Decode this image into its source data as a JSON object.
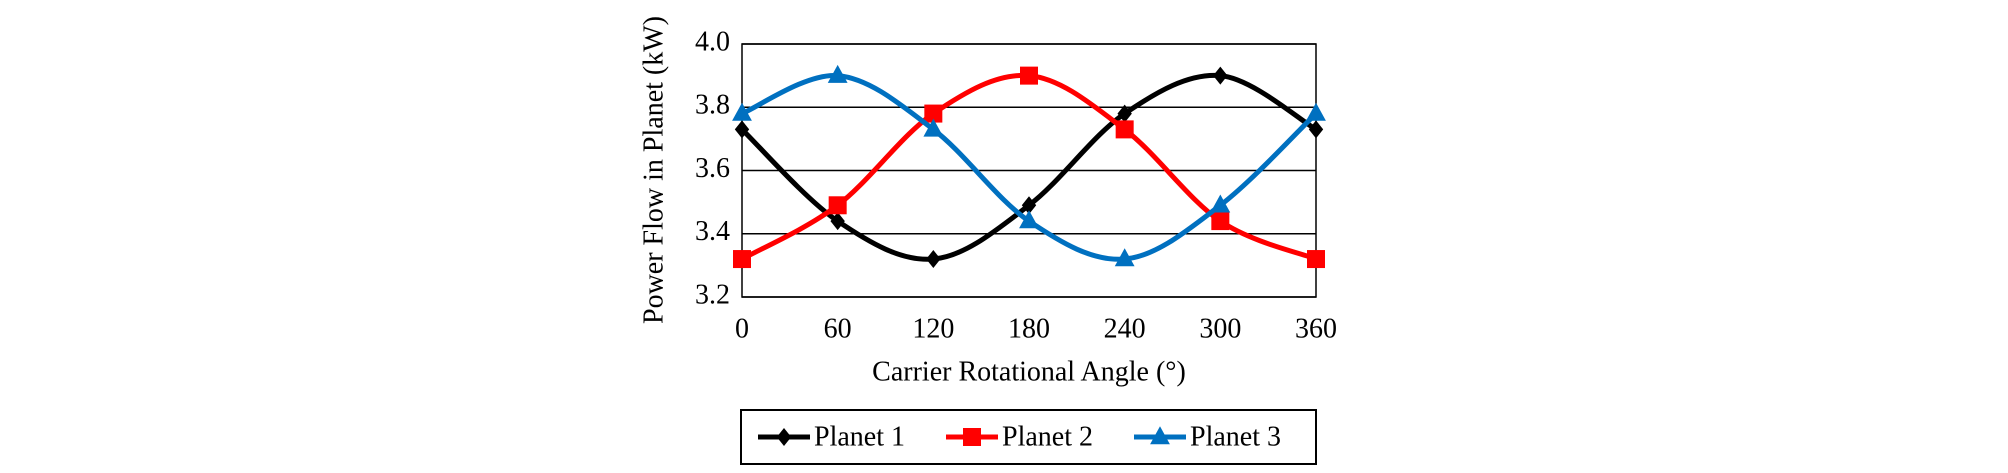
{
  "chart_data": {
    "type": "line",
    "x_label": "Carrier Rotational Angle (°)",
    "y_label": "Power Flow in Planet (kW)",
    "x": [
      0,
      60,
      120,
      180,
      240,
      300,
      360
    ],
    "xlim": [
      0,
      360
    ],
    "xticks": [
      0,
      60,
      120,
      180,
      240,
      300,
      360
    ],
    "ylim": [
      3.2,
      4
    ],
    "yticks": [
      3.2,
      3.4,
      3.6,
      3.8,
      {
        "value": 4,
        "label": "4.0"
      }
    ],
    "grid": true,
    "smooth": true,
    "legend": "bottom",
    "series": [
      {
        "name": "Planet 1",
        "color": "#000000",
        "marker": "diamond",
        "values": [
          3.73,
          3.44,
          3.32,
          3.49,
          3.78,
          3.9,
          3.73
        ]
      },
      {
        "name": "Planet 2",
        "color": "#ff0000",
        "marker": "square",
        "values": [
          3.32,
          3.49,
          3.78,
          3.9,
          3.73,
          3.44,
          3.32
        ]
      },
      {
        "name": "Planet 3",
        "color": "#0070c0",
        "marker": "triangle",
        "values": [
          3.78,
          3.9,
          3.73,
          3.44,
          3.32,
          3.49,
          3.78
        ]
      }
    ]
  }
}
